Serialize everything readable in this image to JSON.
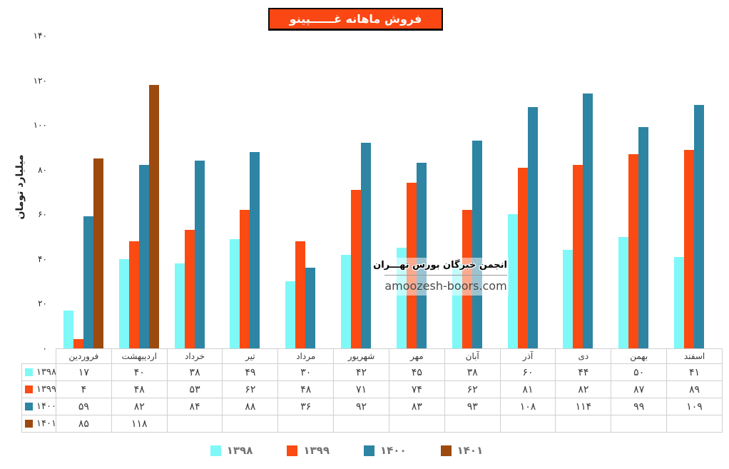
{
  "title": "فروش ماهانه غــــــپینو",
  "y_axis": {
    "title": "میلیارد تومان",
    "ticks": [
      "۱۴۰",
      "۱۲۰",
      "۱۰۰",
      "۸۰",
      "۶۰",
      "۴۰",
      "۲۰",
      "۰"
    ]
  },
  "months": [
    "فروردین",
    "اردیبهشت",
    "خرداد",
    "تیر",
    "مرداد",
    "شهریور",
    "مهر",
    "آبان",
    "آذر",
    "دی",
    "بهمن",
    "اسفند"
  ],
  "table_rows": [
    {
      "year": "۱۳۹۸",
      "color": "#7FF8F8",
      "cells": [
        "۱۷",
        "۴۰",
        "۳۸",
        "۴۹",
        "۳۰",
        "۴۲",
        "۴۵",
        "۳۸",
        "۶۰",
        "۴۴",
        "۵۰",
        "۴۱"
      ]
    },
    {
      "year": "۱۳۹۹",
      "color": "#FB4B12",
      "cells": [
        "۴",
        "۴۸",
        "۵۳",
        "۶۲",
        "۴۸",
        "۷۱",
        "۷۴",
        "۶۲",
        "۸۱",
        "۸۲",
        "۸۷",
        "۸۹"
      ]
    },
    {
      "year": "۱۴۰۰",
      "color": "#2E84A3",
      "cells": [
        "۵۹",
        "۸۲",
        "۸۴",
        "۸۸",
        "۳۶",
        "۹۲",
        "۸۳",
        "۹۳",
        "۱۰۸",
        "۱۱۴",
        "۹۹",
        "۱۰۹"
      ]
    },
    {
      "year": "۱۴۰۱",
      "color": "#9D4A10",
      "cells": [
        "۸۵",
        "۱۱۸",
        "",
        "",
        "",
        "",
        "",
        "",
        "",
        "",
        "",
        ""
      ]
    }
  ],
  "legend": [
    {
      "label": "۱۳۹۸",
      "color": "#7FF8F8"
    },
    {
      "label": "۱۳۹۹",
      "color": "#FB4B12"
    },
    {
      "label": "۱۴۰۰",
      "color": "#2E84A3"
    },
    {
      "label": "۱۴۰۱",
      "color": "#9D4A10"
    }
  ],
  "watermark": {
    "org": "انجمن خبرگان بورس تهـــران",
    "site": "amoozesh-boors.com"
  },
  "colors": {
    "title_background": "#FB4713",
    "series_1398": "#7FF8F8",
    "series_1399": "#FB4B12",
    "series_1400": "#2E84A3",
    "series_1401": "#9D4A10",
    "table_border": "#D0D0D0",
    "legend_text": "#737373"
  },
  "chart_data": {
    "type": "bar",
    "title": "فروش ماهانه غــــــپینو",
    "xlabel": "",
    "ylabel": "میلیارد تومان",
    "ylim": [
      0,
      140
    ],
    "y_tick_step": 20,
    "grid": false,
    "legend_position": "bottom",
    "data_table_shown": true,
    "categories": [
      "فروردین",
      "اردیبهشت",
      "خرداد",
      "تیر",
      "مرداد",
      "شهریور",
      "مهر",
      "آبان",
      "آذر",
      "دی",
      "بهمن",
      "اسفند"
    ],
    "series": [
      {
        "name": "1398",
        "color": "#7FF8F8",
        "values": [
          17,
          40,
          38,
          49,
          30,
          42,
          45,
          38,
          60,
          44,
          50,
          41
        ]
      },
      {
        "name": "1399",
        "color": "#FB4B12",
        "values": [
          4,
          48,
          53,
          62,
          48,
          71,
          74,
          62,
          81,
          82,
          87,
          89
        ]
      },
      {
        "name": "1400",
        "color": "#2E84A3",
        "values": [
          59,
          82,
          84,
          88,
          36,
          92,
          83,
          93,
          108,
          114,
          99,
          109
        ]
      },
      {
        "name": "1401",
        "color": "#9D4A10",
        "values": [
          85,
          118,
          null,
          null,
          null,
          null,
          null,
          null,
          null,
          null,
          null,
          null
        ]
      }
    ]
  }
}
